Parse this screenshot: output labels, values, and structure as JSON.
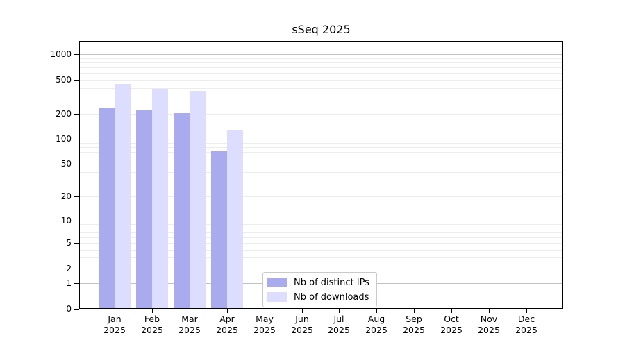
{
  "chart_data": {
    "type": "bar",
    "title": "sSeq 2025",
    "year_label": "2025",
    "categories": [
      "Jan",
      "Feb",
      "Mar",
      "Apr",
      "May",
      "Jun",
      "Jul",
      "Aug",
      "Sep",
      "Oct",
      "Nov",
      "Dec"
    ],
    "series": [
      {
        "name": "Nb of distinct IPs",
        "color": "#aaaaee",
        "values": [
          230,
          217,
          201,
          73,
          0,
          0,
          0,
          0,
          0,
          0,
          0,
          0
        ]
      },
      {
        "name": "Nb of downloads",
        "color": "#ddddff",
        "values": [
          450,
          395,
          370,
          125,
          0,
          0,
          0,
          0,
          0,
          0,
          0,
          0
        ]
      }
    ],
    "y_scale": "log1p",
    "y_ticks": [
      0,
      1,
      2,
      5,
      10,
      20,
      50,
      100,
      200,
      500,
      1000
    ],
    "major_grid_values": [
      1,
      10,
      100,
      1000
    ],
    "y_axis_max": 1440,
    "ylim": [
      0,
      1440
    ],
    "xlabel": "",
    "ylabel": "",
    "grid": "both",
    "legend_position": "lower-center",
    "colors": {
      "major_grid": "#c2c2c2",
      "minor_grid": "#ececec",
      "spine": "#000000",
      "text": "#000000",
      "background": "#ffffff"
    }
  }
}
